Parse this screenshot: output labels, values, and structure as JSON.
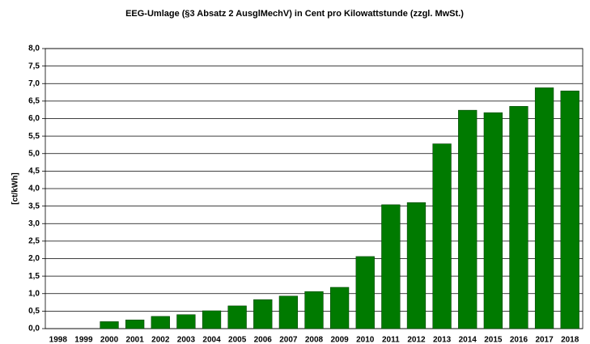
{
  "chart_data": {
    "type": "bar",
    "title": "EEG-Umlage (§3 Absatz 2 AusglMechV) in Cent pro Kilowattstunde (zzgl. MwSt.)",
    "y_label": "[ct/kWh]",
    "categories": [
      "1998",
      "1999",
      "2000",
      "2001",
      "2002",
      "2003",
      "2004",
      "2005",
      "2006",
      "2007",
      "2008",
      "2009",
      "2010",
      "2011",
      "2012",
      "2013",
      "2014",
      "2015",
      "2016",
      "2017",
      "2018"
    ],
    "values": [
      0,
      0,
      0.2,
      0.25,
      0.35,
      0.4,
      0.51,
      0.65,
      0.83,
      0.93,
      1.06,
      1.18,
      2.06,
      3.54,
      3.6,
      5.28,
      6.24,
      6.17,
      6.35,
      6.88,
      6.79
    ],
    "color": "#007a00",
    "ylim": [
      0,
      8
    ],
    "yticks": [
      {
        "value": 0,
        "label": "0,0"
      },
      {
        "value": 0.5,
        "label": "0,5"
      },
      {
        "value": 1,
        "label": "1,0"
      },
      {
        "value": 1.5,
        "label": "1,5"
      },
      {
        "value": 2,
        "label": "2,0"
      },
      {
        "value": 2.5,
        "label": "2,5"
      },
      {
        "value": 3,
        "label": "3,0"
      },
      {
        "value": 3.5,
        "label": "3,5"
      },
      {
        "value": 4,
        "label": "4,0"
      },
      {
        "value": 4.5,
        "label": "4,5"
      },
      {
        "value": 5,
        "label": "5,0"
      },
      {
        "value": 5.5,
        "label": "5,5"
      },
      {
        "value": 6,
        "label": "6,0"
      },
      {
        "value": 6.5,
        "label": "6,5"
      },
      {
        "value": 7,
        "label": "7,0"
      },
      {
        "value": 7.5,
        "label": "7,5"
      },
      {
        "value": 8,
        "label": "8,0"
      }
    ],
    "grid": true
  }
}
